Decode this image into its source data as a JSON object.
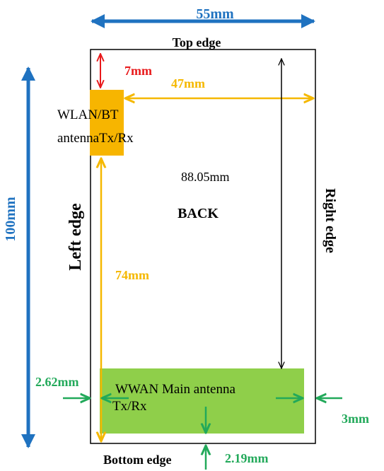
{
  "colors": {
    "blue": "#1f72c0",
    "red": "#e8191b",
    "yellow": "#f5b800",
    "orange_block": "#f7b500",
    "green_block": "#8fcf4a",
    "green_text": "#22a95a",
    "black": "#000000"
  },
  "dimensions": {
    "width": "55mm",
    "height": "100mm",
    "top_gap": "7mm",
    "wlan_to_right": "47mm",
    "wlan_to_bottom": "74mm",
    "top_to_wwan": "88.05mm",
    "wwan_left_gap": "2.62mm",
    "wwan_right_gap": "3mm",
    "wwan_bottom_gap": "2.19mm"
  },
  "labels": {
    "top_edge": "Top edge",
    "bottom_edge": "Bottom edge",
    "left_edge": "Left edge",
    "right_edge": "Right edge",
    "back": "BACK",
    "wlan_line1": "WLAN/BT",
    "wlan_line2": "antennaTx/Rx",
    "wwan_line1": "WWAN Main antenna",
    "wwan_line2": "Tx/Rx"
  }
}
